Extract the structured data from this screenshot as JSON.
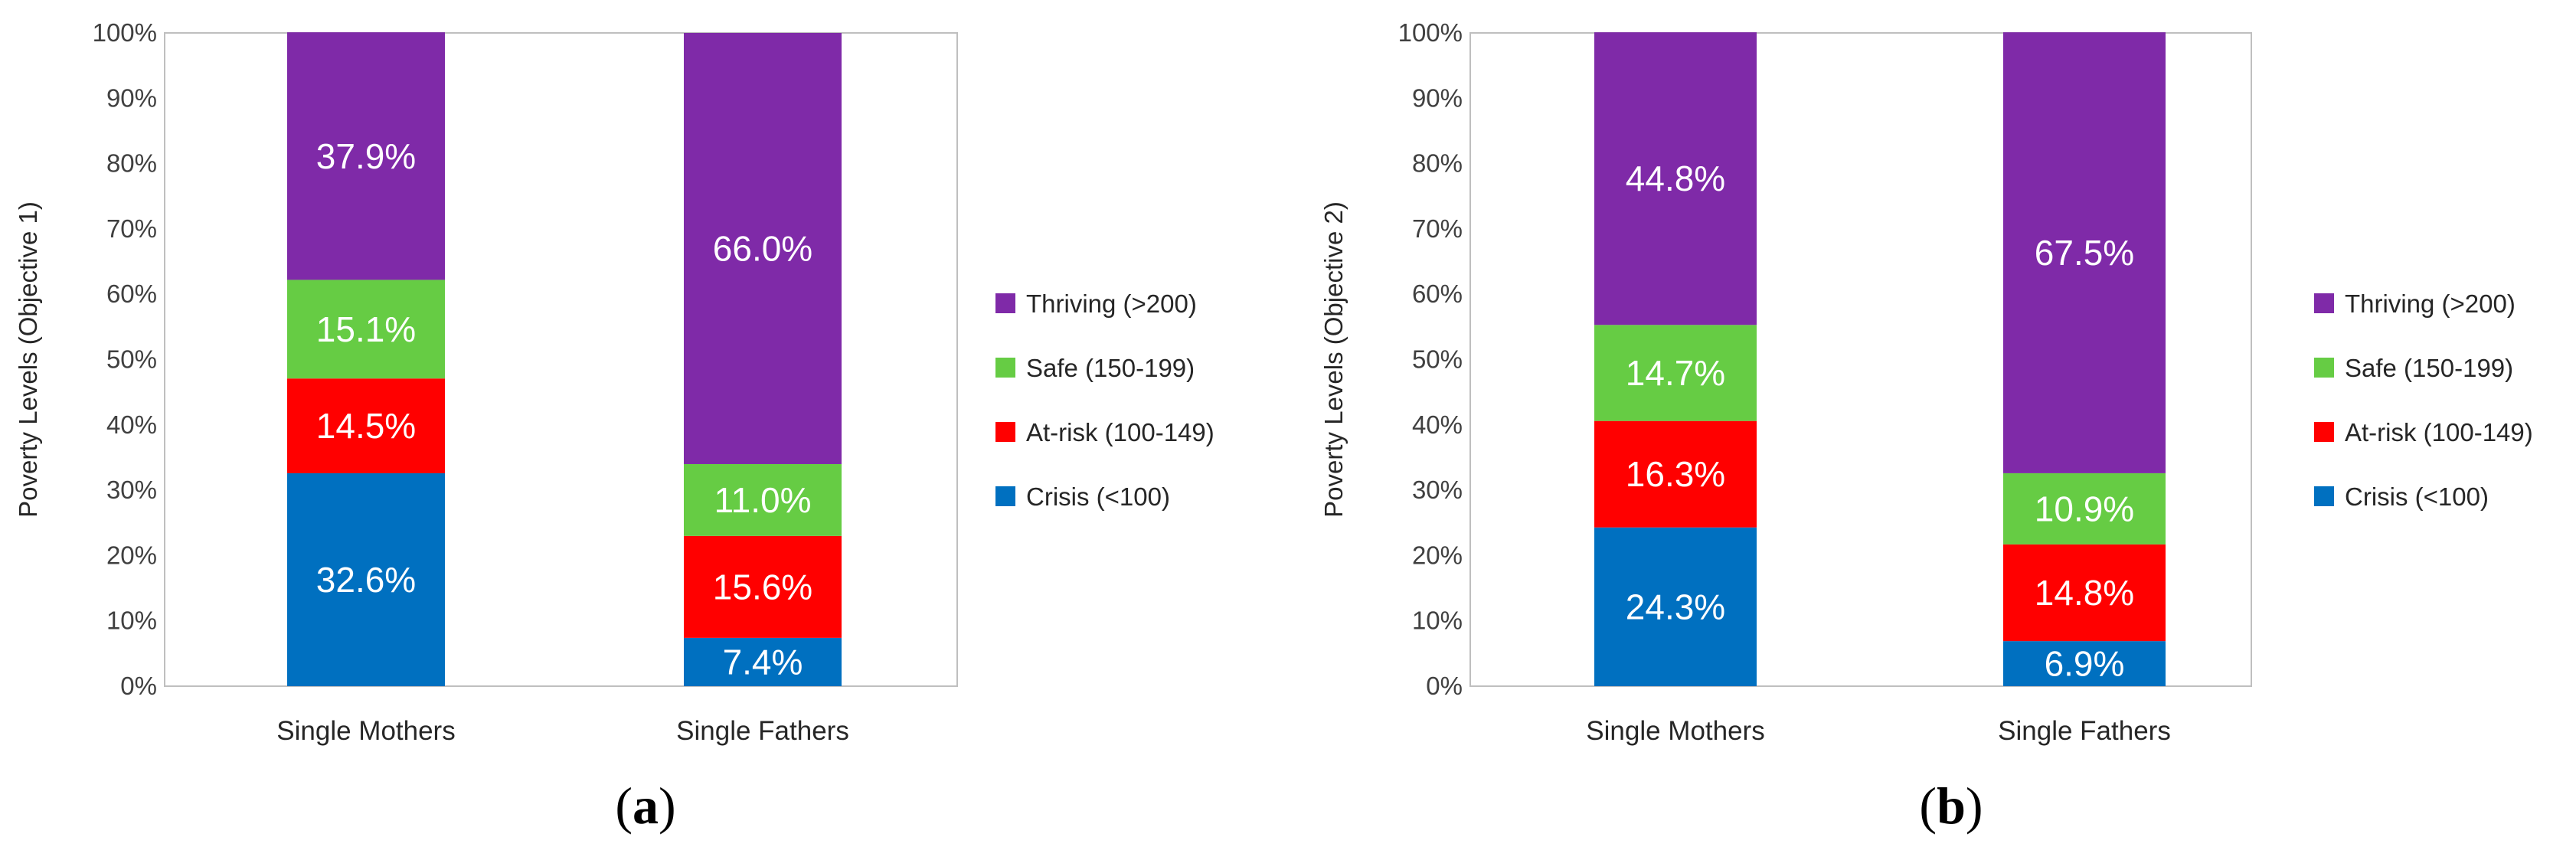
{
  "chart_data": [
    {
      "type": "bar",
      "stacked": true,
      "panel_label": "a",
      "ylabel": "Poverty Levels (Objective 1)",
      "ylim": [
        0,
        100
      ],
      "y_ticks": [
        "0%",
        "10%",
        "20%",
        "30%",
        "40%",
        "50%",
        "60%",
        "70%",
        "80%",
        "90%",
        "100%"
      ],
      "categories": [
        "Single Mothers",
        "Single Fathers"
      ],
      "series": [
        {
          "name": "Crisis (<100)",
          "values": [
            32.6,
            7.4
          ],
          "labels": [
            "32.6%",
            "7.4%"
          ],
          "color": "#0070c0"
        },
        {
          "name": "At-risk (100-149)",
          "values": [
            14.5,
            15.6
          ],
          "labels": [
            "14.5%",
            "15.6%"
          ],
          "color": "#ff0000"
        },
        {
          "name": "Safe (150-199)",
          "values": [
            15.1,
            11.0
          ],
          "labels": [
            "15.1%",
            "11.0%"
          ],
          "color": "#66cc44"
        },
        {
          "name": "Thriving (>200)",
          "values": [
            37.9,
            66.0
          ],
          "labels": [
            "37.9%",
            "66.0%"
          ],
          "color": "#7f2aa8"
        }
      ],
      "legend": "right"
    },
    {
      "type": "bar",
      "stacked": true,
      "panel_label": "b",
      "ylabel": "Poverty Levels (Objective 2)",
      "ylim": [
        0,
        100
      ],
      "y_ticks": [
        "0%",
        "10%",
        "20%",
        "30%",
        "40%",
        "50%",
        "60%",
        "70%",
        "80%",
        "90%",
        "100%"
      ],
      "categories": [
        "Single Mothers",
        "Single Fathers"
      ],
      "series": [
        {
          "name": "Crisis (<100)",
          "values": [
            24.3,
            6.9
          ],
          "labels": [
            "24.3%",
            "6.9%"
          ],
          "color": "#0070c0"
        },
        {
          "name": "At-risk (100-149)",
          "values": [
            16.3,
            14.8
          ],
          "labels": [
            "16.3%",
            "14.8%"
          ],
          "color": "#ff0000"
        },
        {
          "name": "Safe (150-199)",
          "values": [
            14.7,
            10.9
          ],
          "labels": [
            "14.7%",
            "10.9%"
          ],
          "color": "#66cc44"
        },
        {
          "name": "Thriving (>200)",
          "values": [
            44.8,
            67.5
          ],
          "labels": [
            "44.8%",
            "67.5%"
          ],
          "color": "#7f2aa8"
        }
      ],
      "legend": "right"
    }
  ]
}
